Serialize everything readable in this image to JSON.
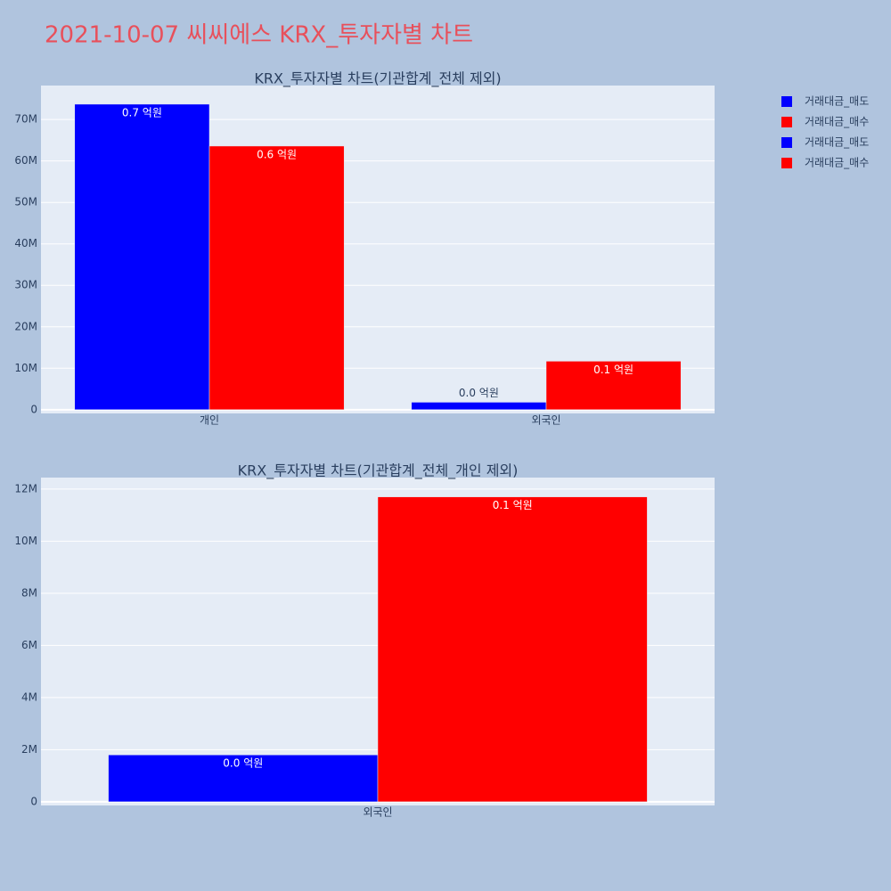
{
  "title": "2021-10-07 씨씨에스 KRX_투자자별 차트",
  "chart_data": [
    {
      "type": "bar",
      "title": "KRX_투자자별 차트(기관합계_전체 제외)",
      "categories": [
        "개인",
        "외국인"
      ],
      "series": [
        {
          "name": "거래대금_매도",
          "color": "#0000ff",
          "values": [
            73700000,
            1800000
          ],
          "value_labels": [
            "0.7 억원",
            "0.0 억원"
          ]
        },
        {
          "name": "거래대금_매수",
          "color": "#ff0000",
          "values": [
            63600000,
            11700000
          ],
          "value_labels": [
            "0.6 억원",
            "0.1 억원"
          ]
        }
      ],
      "ylim": [
        -900000,
        78200000
      ],
      "yticks": [
        0,
        {
          "value": 10000000,
          "label": "10M"
        },
        {
          "value": 20000000,
          "label": "20M"
        },
        {
          "value": 30000000,
          "label": "30M"
        },
        {
          "value": 40000000,
          "label": "40M"
        },
        {
          "value": 50000000,
          "label": "50M"
        },
        {
          "value": 60000000,
          "label": "60M"
        },
        {
          "value": 70000000,
          "label": "70M"
        }
      ],
      "grid": true
    },
    {
      "type": "bar",
      "title": "KRX_투자자별 차트(기관합계_전체_개인 제외)",
      "categories": [
        "외국인"
      ],
      "series": [
        {
          "name": "거래대금_매도",
          "color": "#0000ff",
          "values": [
            1800000
          ],
          "value_labels": [
            "0.0 억원"
          ]
        },
        {
          "name": "거래대금_매수",
          "color": "#ff0000",
          "values": [
            11700000
          ],
          "value_labels": [
            "0.1 억원"
          ]
        }
      ],
      "ylim": [
        -140000,
        12440000
      ],
      "yticks": [
        0,
        {
          "value": 2000000,
          "label": "2M"
        },
        {
          "value": 4000000,
          "label": "4M"
        },
        {
          "value": 6000000,
          "label": "6M"
        },
        {
          "value": 8000000,
          "label": "8M"
        },
        {
          "value": 10000000,
          "label": "10M"
        },
        {
          "value": 12000000,
          "label": "12M"
        }
      ],
      "grid": true
    }
  ]
}
